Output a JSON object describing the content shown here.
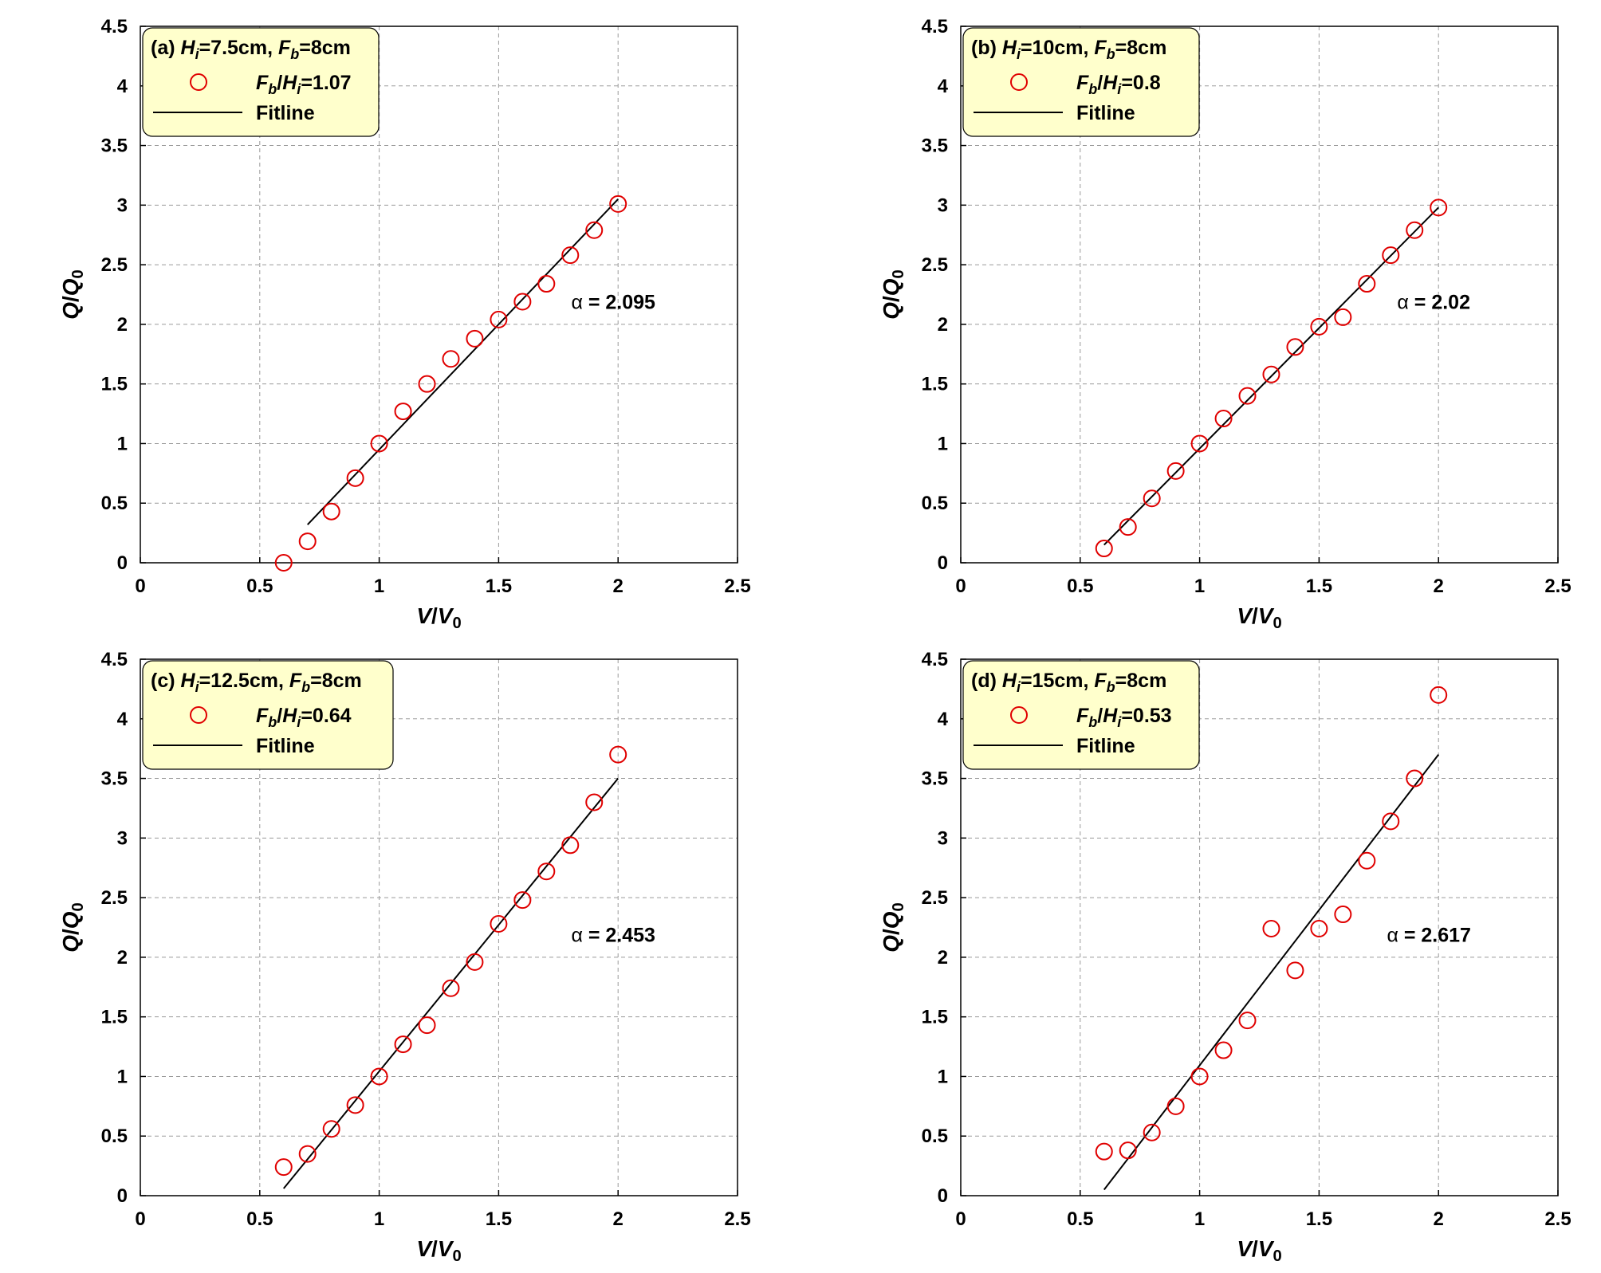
{
  "chart_data": [
    {
      "type": "scatter",
      "panel_label": "(a)",
      "title_parts": [
        "H",
        "i",
        "=7.5cm, ",
        "F",
        "b",
        "=8cm"
      ],
      "series": [
        {
          "name": "Fb/Hi=1.07",
          "legend_parts": [
            "F",
            "b",
            "/",
            "H",
            "i",
            "=1.07"
          ],
          "x": [
            0.6,
            0.7,
            0.8,
            0.9,
            1.0,
            1.1,
            1.2,
            1.3,
            1.4,
            1.5,
            1.6,
            1.7,
            1.8,
            1.9,
            2.0
          ],
          "y": [
            0.0,
            0.18,
            0.43,
            0.71,
            1.0,
            1.27,
            1.5,
            1.71,
            1.88,
            2.04,
            2.19,
            2.34,
            2.58,
            2.79,
            3.01
          ]
        }
      ],
      "fitline": {
        "name": "Fitline",
        "x": [
          0.7,
          2.0
        ],
        "y": [
          0.32,
          3.05
        ]
      },
      "annotation": {
        "symbol": "α",
        "text": " = 2.095",
        "x": 1.98,
        "y": 2.13
      },
      "xlabel_parts": [
        "V",
        "/",
        "V",
        "0"
      ],
      "ylabel_parts": [
        "Q",
        "/",
        "Q",
        "0"
      ],
      "xlim": [
        0,
        2.5
      ],
      "ylim": [
        0,
        4.5
      ],
      "xticks": [
        "0",
        "0.5",
        "1",
        "1.5",
        "2",
        "2.5"
      ],
      "yticks": [
        "0",
        "0.5",
        "1",
        "1.5",
        "2",
        "2.5",
        "3",
        "3.5",
        "4",
        "4.5"
      ],
      "grid": true,
      "legend": "top-left",
      "marker_color": "#e00000",
      "line_color": "#000000",
      "legend_bg": "#ffffcc"
    },
    {
      "type": "scatter",
      "panel_label": "(b)",
      "title_parts": [
        "H",
        "i",
        "=10cm, ",
        "F",
        "b",
        "=8cm"
      ],
      "series": [
        {
          "name": "Fb/Hi=0.8",
          "legend_parts": [
            "F",
            "b",
            "/",
            "H",
            "i",
            "=0.8"
          ],
          "x": [
            0.6,
            0.7,
            0.8,
            0.9,
            1.0,
            1.1,
            1.2,
            1.3,
            1.4,
            1.5,
            1.6,
            1.7,
            1.8,
            1.9,
            2.0
          ],
          "y": [
            0.12,
            0.3,
            0.54,
            0.77,
            1.0,
            1.21,
            1.4,
            1.58,
            1.81,
            1.98,
            2.06,
            2.34,
            2.58,
            2.79,
            2.98
          ]
        }
      ],
      "fitline": {
        "name": "Fitline",
        "x": [
          0.6,
          2.0
        ],
        "y": [
          0.15,
          2.98
        ]
      },
      "annotation": {
        "symbol": "α",
        "text": " = 2.02",
        "x": 1.98,
        "y": 2.13
      },
      "xlabel_parts": [
        "V",
        "/",
        "V",
        "0"
      ],
      "ylabel_parts": [
        "Q",
        "/",
        "Q",
        "0"
      ],
      "xlim": [
        0,
        2.5
      ],
      "ylim": [
        0,
        4.5
      ],
      "xticks": [
        "0",
        "0.5",
        "1",
        "1.5",
        "2",
        "2.5"
      ],
      "yticks": [
        "0",
        "0.5",
        "1",
        "1.5",
        "2",
        "2.5",
        "3",
        "3.5",
        "4",
        "4.5"
      ],
      "grid": true,
      "legend": "top-left",
      "marker_color": "#e00000",
      "line_color": "#000000",
      "legend_bg": "#ffffcc"
    },
    {
      "type": "scatter",
      "panel_label": "(c)",
      "title_parts": [
        "H",
        "i",
        "=12.5cm, ",
        "F",
        "b",
        "=8cm"
      ],
      "series": [
        {
          "name": "Fb/Hi=0.64",
          "legend_parts": [
            "F",
            "b",
            "/",
            "H",
            "i",
            "=0.64"
          ],
          "x": [
            0.6,
            0.7,
            0.8,
            0.9,
            1.0,
            1.1,
            1.2,
            1.3,
            1.4,
            1.5,
            1.6,
            1.7,
            1.8,
            1.9,
            2.0
          ],
          "y": [
            0.24,
            0.35,
            0.56,
            0.76,
            1.0,
            1.27,
            1.43,
            1.74,
            1.96,
            2.28,
            2.48,
            2.72,
            2.94,
            3.3,
            3.7
          ]
        }
      ],
      "fitline": {
        "name": "Fitline",
        "x": [
          0.6,
          2.0
        ],
        "y": [
          0.06,
          3.5
        ]
      },
      "annotation": {
        "symbol": "α",
        "text": " = 2.453",
        "x": 1.98,
        "y": 2.13
      },
      "xlabel_parts": [
        "V",
        "/",
        "V",
        "0"
      ],
      "ylabel_parts": [
        "Q",
        "/",
        "Q",
        "0"
      ],
      "xlim": [
        0,
        2.5
      ],
      "ylim": [
        0,
        4.5
      ],
      "xticks": [
        "0",
        "0.5",
        "1",
        "1.5",
        "2",
        "2.5"
      ],
      "yticks": [
        "0",
        "0.5",
        "1",
        "1.5",
        "2",
        "2.5",
        "3",
        "3.5",
        "4",
        "4.5"
      ],
      "grid": true,
      "legend": "top-left",
      "marker_color": "#e00000",
      "line_color": "#000000",
      "legend_bg": "#ffffcc"
    },
    {
      "type": "scatter",
      "panel_label": "(d)",
      "title_parts": [
        "H",
        "i",
        "=15cm, ",
        "F",
        "b",
        "=8cm"
      ],
      "series": [
        {
          "name": "Fb/Hi=0.53",
          "legend_parts": [
            "F",
            "b",
            "/",
            "H",
            "i",
            "=0.53"
          ],
          "x": [
            0.6,
            0.7,
            0.8,
            0.9,
            1.0,
            1.1,
            1.2,
            1.3,
            1.4,
            1.5,
            1.6,
            1.7,
            1.8,
            1.9,
            2.0
          ],
          "y": [
            0.37,
            0.38,
            0.53,
            0.75,
            1.0,
            1.22,
            1.47,
            2.24,
            1.89,
            2.24,
            2.36,
            2.81,
            3.14,
            3.5,
            4.2
          ]
        }
      ],
      "fitline": {
        "name": "Fitline",
        "x": [
          0.6,
          2.0
        ],
        "y": [
          0.05,
          3.7
        ]
      },
      "annotation": {
        "symbol": "α",
        "text": " = 2.617",
        "x": 1.96,
        "y": 2.13
      },
      "xlabel_parts": [
        "V",
        "/",
        "V",
        "0"
      ],
      "ylabel_parts": [
        "Q",
        "/",
        "Q",
        "0"
      ],
      "xlim": [
        0,
        2.5
      ],
      "ylim": [
        0,
        4.5
      ],
      "xticks": [
        "0",
        "0.5",
        "1",
        "1.5",
        "2",
        "2.5"
      ],
      "yticks": [
        "0",
        "0.5",
        "1",
        "1.5",
        "2",
        "2.5",
        "3",
        "3.5",
        "4",
        "4.5"
      ],
      "grid": true,
      "legend": "top-left",
      "marker_color": "#e00000",
      "line_color": "#000000",
      "legend_bg": "#ffffcc"
    }
  ]
}
